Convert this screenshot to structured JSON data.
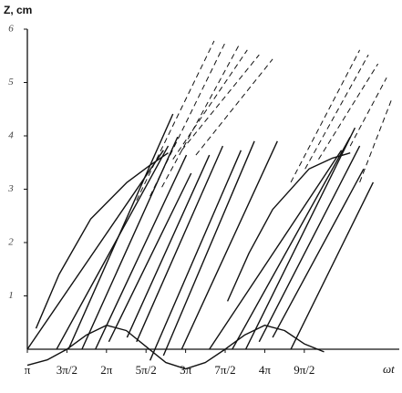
{
  "chart_data": {
    "type": "line",
    "y_label": "Z, cm",
    "x_label": "ωt",
    "color": "#111111",
    "xlim": [
      1,
      5.7
    ],
    "ylim": [
      0,
      6
    ],
    "xticks": [
      {
        "value": 1,
        "label": "π"
      },
      {
        "value": 1.5,
        "label": "3π/2"
      },
      {
        "value": 2,
        "label": "2π"
      },
      {
        "value": 2.5,
        "label": "5π/2"
      },
      {
        "value": 3,
        "label": "3π"
      },
      {
        "value": 3.5,
        "label": "7π/2"
      },
      {
        "value": 4,
        "label": "4π"
      },
      {
        "value": 4.5,
        "label": "9π/2"
      }
    ],
    "yticks": [
      1,
      2,
      3,
      4,
      5,
      6
    ],
    "series": [
      {
        "x": [
          1,
          1.25,
          1.5,
          1.75,
          2,
          2.25,
          2.5,
          2.75,
          3,
          3.25,
          3.5,
          3.75,
          4,
          4.25,
          4.5,
          4.75
        ],
        "values": [
          -0.3,
          -0.2,
          0,
          0.27,
          0.45,
          0.35,
          0.05,
          -0.25,
          -0.37,
          -0.25,
          0,
          0.27,
          0.45,
          0.35,
          0.1,
          -0.05
        ],
        "dash": false
      },
      {
        "x": [
          1.11,
          1.4,
          1.8,
          2.26,
          2.55,
          2.78
        ],
        "values": [
          0.39,
          1.4,
          2.44,
          3.13,
          3.45,
          3.68
        ],
        "dash": false
      },
      {
        "x": [
          3.53,
          3.8,
          4.1,
          4.56,
          4.85,
          5.08
        ],
        "values": [
          0.9,
          1.8,
          2.62,
          3.38,
          3.58,
          3.68
        ],
        "dash": false
      },
      {
        "x": [
          1,
          2.72
        ],
        "values": [
          0,
          3.73
        ],
        "dash": false
      },
      {
        "x": [
          1.37,
          2.78
        ],
        "values": [
          0,
          3.81
        ],
        "dash": false
      },
      {
        "x": [
          1.52,
          2.84
        ],
        "values": [
          0,
          4.41
        ],
        "dash": false
      },
      {
        "x": [
          1.69,
          2.9
        ],
        "values": [
          0,
          3.98
        ],
        "dash": false
      },
      {
        "x": [
          1.86,
          3.01
        ],
        "values": [
          0,
          3.64
        ],
        "dash": false
      },
      {
        "x": [
          2.03,
          3.07
        ],
        "values": [
          0.14,
          3.3
        ],
        "dash": false
      },
      {
        "x": [
          2.26,
          3.3
        ],
        "values": [
          0.22,
          3.64
        ],
        "dash": false
      },
      {
        "x": [
          2.38,
          3.47
        ],
        "values": [
          0.14,
          3.81
        ],
        "dash": false
      },
      {
        "x": [
          2.55,
          3.7
        ],
        "values": [
          -0.21,
          3.73
        ],
        "dash": false
      },
      {
        "x": [
          2.72,
          3.87
        ],
        "values": [
          -0.12,
          3.9
        ],
        "dash": false
      },
      {
        "x": [
          2.95,
          4.16
        ],
        "values": [
          0,
          3.9
        ],
        "dash": false
      },
      {
        "x": [
          3.3,
          4.97
        ],
        "values": [
          0,
          3.73
        ],
        "dash": false
      },
      {
        "x": [
          3.59,
          5.08
        ],
        "values": [
          0,
          3.98
        ],
        "dash": false
      },
      {
        "x": [
          3.76,
          5.14
        ],
        "values": [
          0,
          4.15
        ],
        "dash": false
      },
      {
        "x": [
          3.93,
          5.2
        ],
        "values": [
          0.14,
          3.81
        ],
        "dash": false
      },
      {
        "x": [
          4.1,
          5.25
        ],
        "values": [
          0.22,
          3.38
        ],
        "dash": false
      },
      {
        "x": [
          4.33,
          5.37
        ],
        "values": [
          0,
          3.13
        ],
        "dash": false
      },
      {
        "x": [
          2.38,
          3.36
        ],
        "values": [
          2.79,
          5.78
        ],
        "dash": true
      },
      {
        "x": [
          2.55,
          3.51
        ],
        "values": [
          2.87,
          5.78
        ],
        "dash": true
      },
      {
        "x": [
          2.7,
          3.67
        ],
        "values": [
          3.04,
          5.69
        ],
        "dash": true
      },
      {
        "x": [
          2.84,
          3.78
        ],
        "values": [
          3.56,
          5.61
        ],
        "dash": true
      },
      {
        "x": [
          2.95,
          3.93
        ],
        "values": [
          3.73,
          5.52
        ],
        "dash": true
      },
      {
        "x": [
          3.13,
          4.1
        ],
        "values": [
          3.64,
          5.44
        ],
        "dash": true
      },
      {
        "x": [
          4.33,
          5.2
        ],
        "values": [
          3.13,
          5.61
        ],
        "dash": true
      },
      {
        "x": [
          4.51,
          5.31
        ],
        "values": [
          3.38,
          5.52
        ],
        "dash": true
      },
      {
        "x": [
          4.68,
          5.43
        ],
        "values": [
          3.56,
          5.35
        ],
        "dash": true
      },
      {
        "x": [
          5.08,
          5.54
        ],
        "values": [
          3.81,
          5.09
        ],
        "dash": true
      },
      {
        "x": [
          5.2,
          5.6
        ],
        "values": [
          3.13,
          4.67
        ],
        "dash": true
      }
    ]
  }
}
